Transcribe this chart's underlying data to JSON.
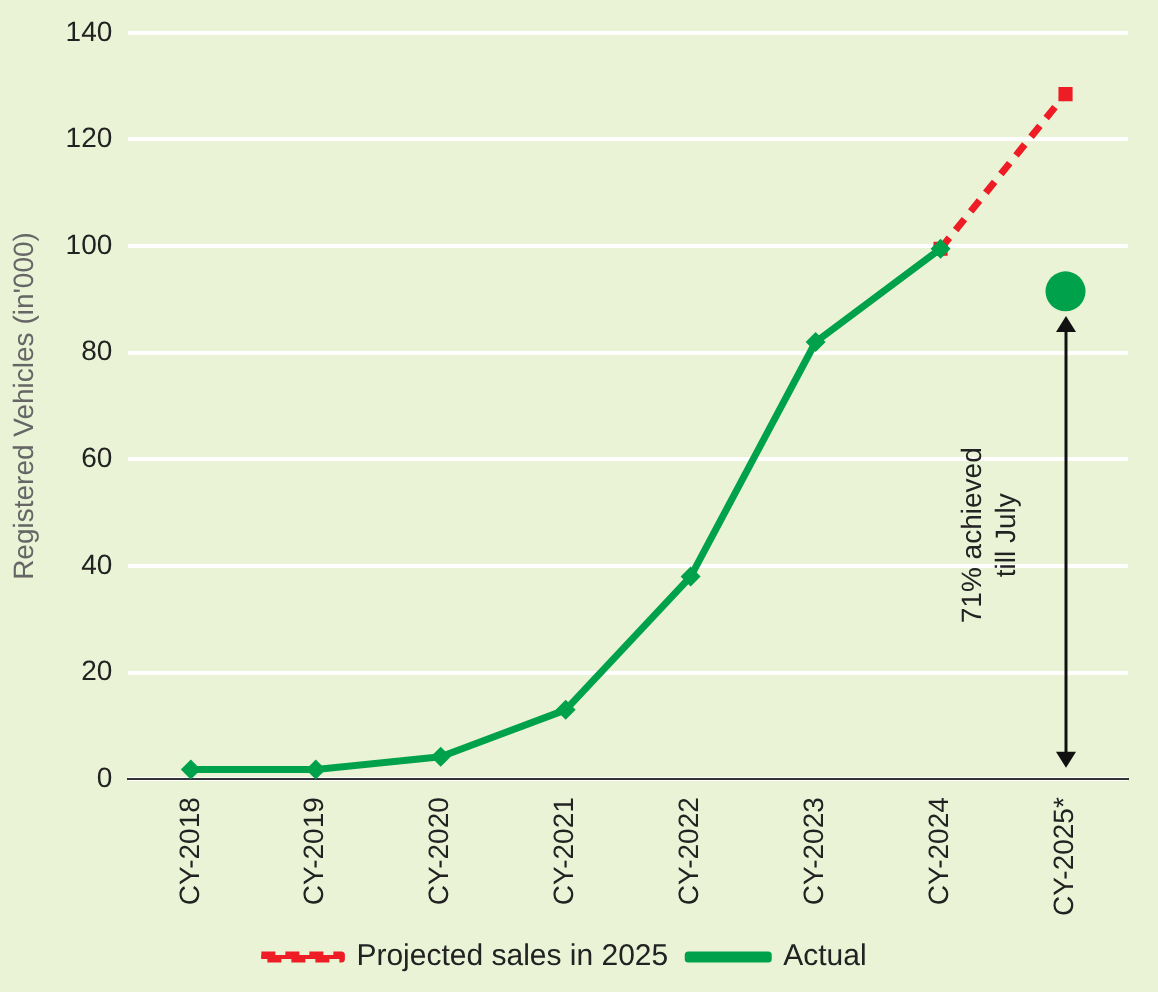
{
  "chart_data": {
    "type": "line",
    "ylabel": "Registered Vehicles (in'000)",
    "categories": [
      "CY-2018",
      "CY-2019",
      "CY-2020",
      "CY-2021",
      "CY-2022",
      "CY-2023",
      "CY-2024",
      "CY-2025*"
    ],
    "series": [
      {
        "name": "Projected sales in 2025",
        "color": "#ee1c25",
        "line_style": "dashed",
        "marker": "square",
        "values": [
          null,
          null,
          null,
          null,
          null,
          null,
          99.5,
          128.5
        ]
      },
      {
        "name": "Actual",
        "color": "#00a14b",
        "marker": "diamond",
        "values": [
          1.8,
          1.8,
          4.2,
          13,
          38,
          82,
          99.5,
          null
        ]
      },
      {
        "type": "scatter",
        "color": "#00a14b",
        "marker": "circle",
        "values": [
          null,
          null,
          null,
          null,
          null,
          null,
          null,
          91.5
        ]
      }
    ],
    "ylim": [
      0,
      140
    ],
    "yticks": [
      0,
      20,
      40,
      60,
      80,
      100,
      120,
      140
    ],
    "grid": "y",
    "legend": "bottom",
    "annotations": [
      "71% achieved till July"
    ]
  }
}
